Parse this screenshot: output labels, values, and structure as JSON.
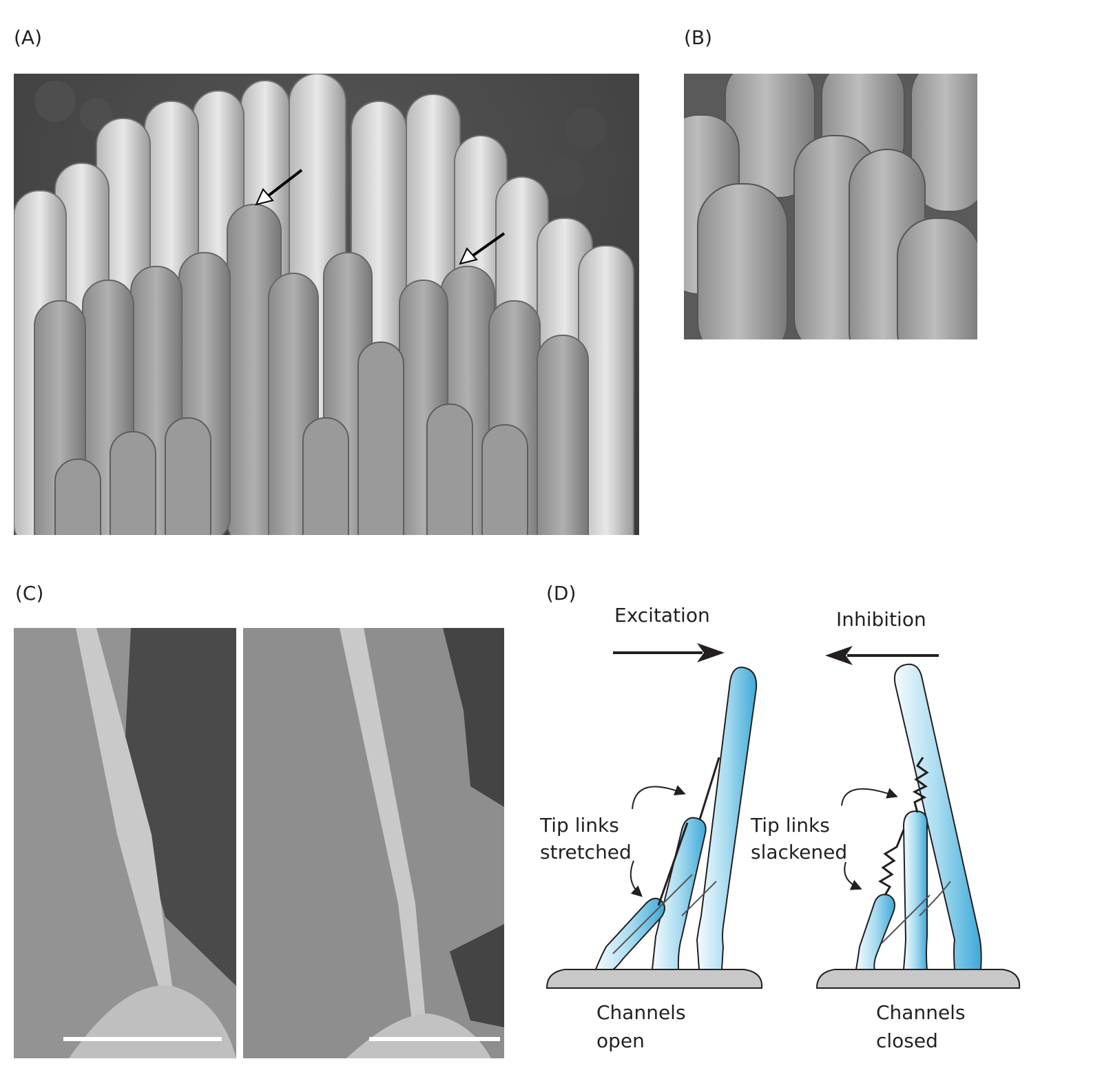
{
  "panels": {
    "a": {
      "label": "(A)"
    },
    "b": {
      "label": "(B)"
    },
    "c": {
      "label": "(C)"
    },
    "d": {
      "label": "(D)",
      "excitation": "Excitation",
      "inhibition": "Inhibition",
      "tip_links_left_1": "Tip links",
      "tip_links_left_2": "stretched",
      "tip_links_right_1": "Tip links",
      "tip_links_right_2": "slackened",
      "channels_left_1": "Channels",
      "channels_left_2": "open",
      "channels_right_1": "Channels",
      "channels_right_2": "closed"
    }
  },
  "colors": {
    "stereocilia_fill": "#a9dcf0",
    "stereocilia_edge": "#5ab6de",
    "base": "#c8c8c8",
    "micrograph_dark": "#3c3c3c",
    "micrograph_light": "#d8d8d8"
  }
}
